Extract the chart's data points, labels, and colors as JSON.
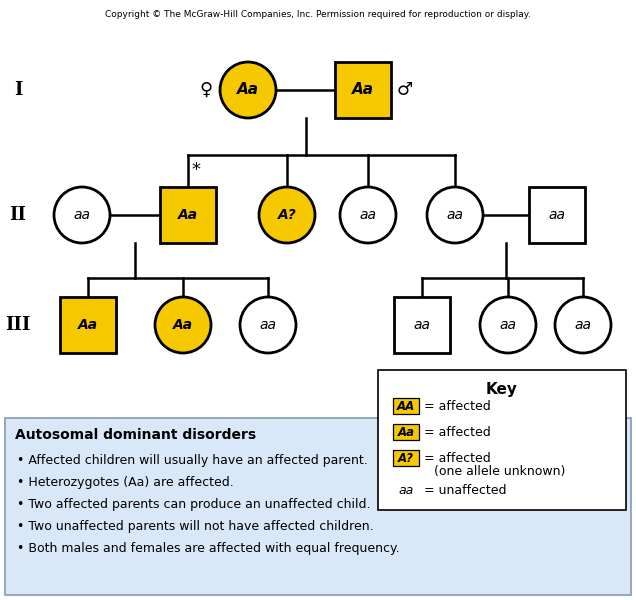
{
  "copyright": "Copyright © The McGraw-Hill Companies, Inc. Permission required for reproduction or display.",
  "yellow": "#F5C800",
  "white": "#FFFFFF",
  "black": "#000000",
  "light_blue_bg": "#D8E8F8",
  "generation_labels": [
    "I",
    "II",
    "III"
  ],
  "fig_w": 6.36,
  "fig_h": 6.0,
  "dpi": 100
}
